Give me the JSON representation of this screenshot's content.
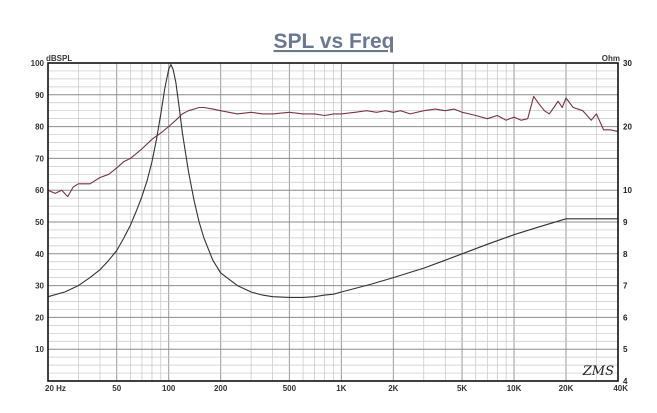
{
  "chart_data": {
    "type": "line",
    "title": "SPL vs Freq",
    "watermark": "ZMS",
    "x_scale": "log",
    "xlim": [
      20,
      40000
    ],
    "x_tick_labels": [
      {
        "value": 20,
        "label": "20 Hz"
      },
      {
        "value": 50,
        "label": "50"
      },
      {
        "value": 100,
        "label": "100"
      },
      {
        "value": 200,
        "label": "200"
      },
      {
        "value": 500,
        "label": "500"
      },
      {
        "value": 1000,
        "label": "1K"
      },
      {
        "value": 2000,
        "label": "2K"
      },
      {
        "value": 5000,
        "label": "5K"
      },
      {
        "value": 10000,
        "label": "10K"
      },
      {
        "value": 20000,
        "label": "20K"
      },
      {
        "value": 40000,
        "label": "40K"
      }
    ],
    "left_axis": {
      "unit": "dBSPL",
      "ylim": [
        0,
        100
      ],
      "ticks": [
        0,
        10,
        20,
        30,
        40,
        50,
        60,
        70,
        80,
        90,
        100
      ],
      "tick_labels": [
        "",
        "10",
        "20",
        "30",
        "40",
        "50",
        "60",
        "70",
        "80",
        "90",
        "100"
      ]
    },
    "right_axis": {
      "unit": "Ohm",
      "ticks": [
        {
          "label": "4",
          "left_equiv": 0
        },
        {
          "label": "5",
          "left_equiv": 10
        },
        {
          "label": "6",
          "left_equiv": 20
        },
        {
          "label": "7",
          "left_equiv": 30
        },
        {
          "label": "8",
          "left_equiv": 40
        },
        {
          "label": "9",
          "left_equiv": 50
        },
        {
          "label": "10",
          "left_equiv": 60
        },
        {
          "label": "20",
          "left_equiv": 80
        },
        {
          "label": "30",
          "left_equiv": 100
        }
      ]
    },
    "grid": true,
    "series": [
      {
        "color": "#7a3545",
        "axis": "left",
        "x": [
          20,
          22,
          24,
          26,
          28,
          30,
          35,
          40,
          45,
          50,
          55,
          60,
          70,
          80,
          90,
          100,
          110,
          120,
          130,
          140,
          150,
          160,
          180,
          200,
          250,
          300,
          350,
          400,
          500,
          600,
          700,
          800,
          900,
          1000,
          1200,
          1400,
          1600,
          1800,
          2000,
          2200,
          2500,
          3000,
          3500,
          4000,
          4500,
          5000,
          5500,
          6000,
          7000,
          8000,
          9000,
          10000,
          11000,
          12000,
          13000,
          14000,
          15000,
          16000,
          17000,
          18000,
          19000,
          20000,
          22000,
          25000,
          28000,
          30000,
          33000,
          36000,
          40000
        ],
        "y": [
          60,
          59,
          60,
          58,
          61,
          62,
          62,
          64,
          65,
          67,
          69,
          70,
          73,
          76,
          78,
          80,
          82,
          84,
          85,
          85.5,
          86,
          86,
          85.5,
          85,
          84,
          84.5,
          84,
          84,
          84.5,
          84,
          84,
          83.5,
          84,
          84,
          84.5,
          85,
          84.5,
          85,
          84.5,
          85,
          84,
          85,
          85.5,
          85,
          85.5,
          84.5,
          84,
          83.5,
          82.5,
          83.5,
          82,
          83,
          82,
          82.5,
          89.5,
          87,
          85,
          84,
          86,
          88,
          86,
          89,
          86,
          85,
          82,
          84,
          79,
          79,
          78.5
        ]
      },
      {
        "color": "#333333",
        "axis": "right",
        "x": [
          20,
          25,
          30,
          35,
          40,
          45,
          50,
          55,
          60,
          65,
          70,
          75,
          80,
          85,
          90,
          95,
          100,
          103,
          106,
          110,
          115,
          120,
          130,
          140,
          150,
          160,
          180,
          200,
          250,
          300,
          350,
          400,
          500,
          600,
          700,
          800,
          900,
          1000,
          1500,
          2000,
          3000,
          4000,
          5000,
          7000,
          10000,
          14000,
          20000,
          25000,
          30000,
          40000
        ],
        "y": [
          26.5,
          28,
          30,
          32.5,
          35,
          38,
          41,
          45,
          49,
          53.5,
          58,
          63,
          69,
          76,
          84,
          92,
          98,
          99.5,
          98,
          94,
          86,
          78,
          66,
          57,
          50,
          45,
          38,
          34,
          30,
          28,
          27,
          26.5,
          26.3,
          26.3,
          26.5,
          27,
          27.3,
          28,
          30.5,
          32.5,
          35.5,
          38,
          40,
          43,
          46,
          48.5,
          51,
          51,
          51,
          51
        ]
      }
    ]
  }
}
